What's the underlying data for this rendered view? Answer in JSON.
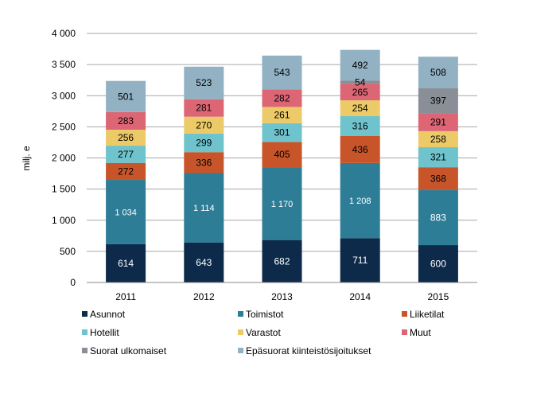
{
  "chart_data": {
    "type": "bar",
    "stacked": true,
    "title": "",
    "xlabel": "",
    "ylabel": "milj. e",
    "ylim": [
      0,
      4000
    ],
    "yticks": [
      0,
      500,
      1000,
      1500,
      2000,
      2500,
      3000,
      3500,
      4000
    ],
    "ytick_labels": [
      "0",
      "500",
      "1 000",
      "1 500",
      "2 000",
      "2 500",
      "3 000",
      "3 500",
      "4 000"
    ],
    "categories": [
      "2011",
      "2012",
      "2013",
      "2014",
      "2015"
    ],
    "grid": "horizontal",
    "legend_position": "bottom",
    "series": [
      {
        "name": "Asunnot",
        "color": "#0d2a4a",
        "label_color": "#ffffff",
        "values": [
          614,
          643,
          682,
          711,
          600
        ],
        "labels": [
          "614",
          "643",
          "682",
          "711",
          "600"
        ]
      },
      {
        "name": "Toimistot",
        "color": "#2e7d96",
        "label_color": "#ffffff",
        "values": [
          1034,
          1114,
          1170,
          1208,
          883
        ],
        "labels": [
          "1 034",
          "1 114",
          "1 170",
          "1 208",
          "883"
        ]
      },
      {
        "name": "Liiketilat",
        "color": "#c8552a",
        "label_color": "#000000",
        "values": [
          272,
          336,
          405,
          436,
          368
        ],
        "labels": [
          "272",
          "336",
          "405",
          "436",
          "368"
        ]
      },
      {
        "name": "Hotellit",
        "color": "#6ec3cc",
        "label_color": "#000000",
        "values": [
          277,
          299,
          301,
          316,
          321
        ],
        "labels": [
          "277",
          "299",
          "301",
          "316",
          "321"
        ]
      },
      {
        "name": "Varastot",
        "color": "#ecca68",
        "label_color": "#000000",
        "values": [
          256,
          270,
          261,
          254,
          258
        ],
        "labels": [
          "256",
          "270",
          "261",
          "254",
          "258"
        ]
      },
      {
        "name": "Muut",
        "color": "#dc6674",
        "label_color": "#000000",
        "values": [
          283,
          281,
          282,
          265,
          291
        ],
        "labels": [
          "283",
          "281",
          "282",
          "265",
          "291"
        ]
      },
      {
        "name": "Suorat ulkomaiset",
        "color": "#8a8f97",
        "label_color": "#000000",
        "values": [
          0,
          0,
          0,
          54,
          397
        ],
        "labels": [
          "",
          "",
          "",
          "54",
          "397"
        ]
      },
      {
        "name": "Epäsuorat kiinteistösijoitukset",
        "color": "#92b2c4",
        "label_color": "#000000",
        "values": [
          501,
          523,
          543,
          492,
          508
        ],
        "labels": [
          "501",
          "523",
          "543",
          "492",
          "508"
        ]
      }
    ]
  }
}
